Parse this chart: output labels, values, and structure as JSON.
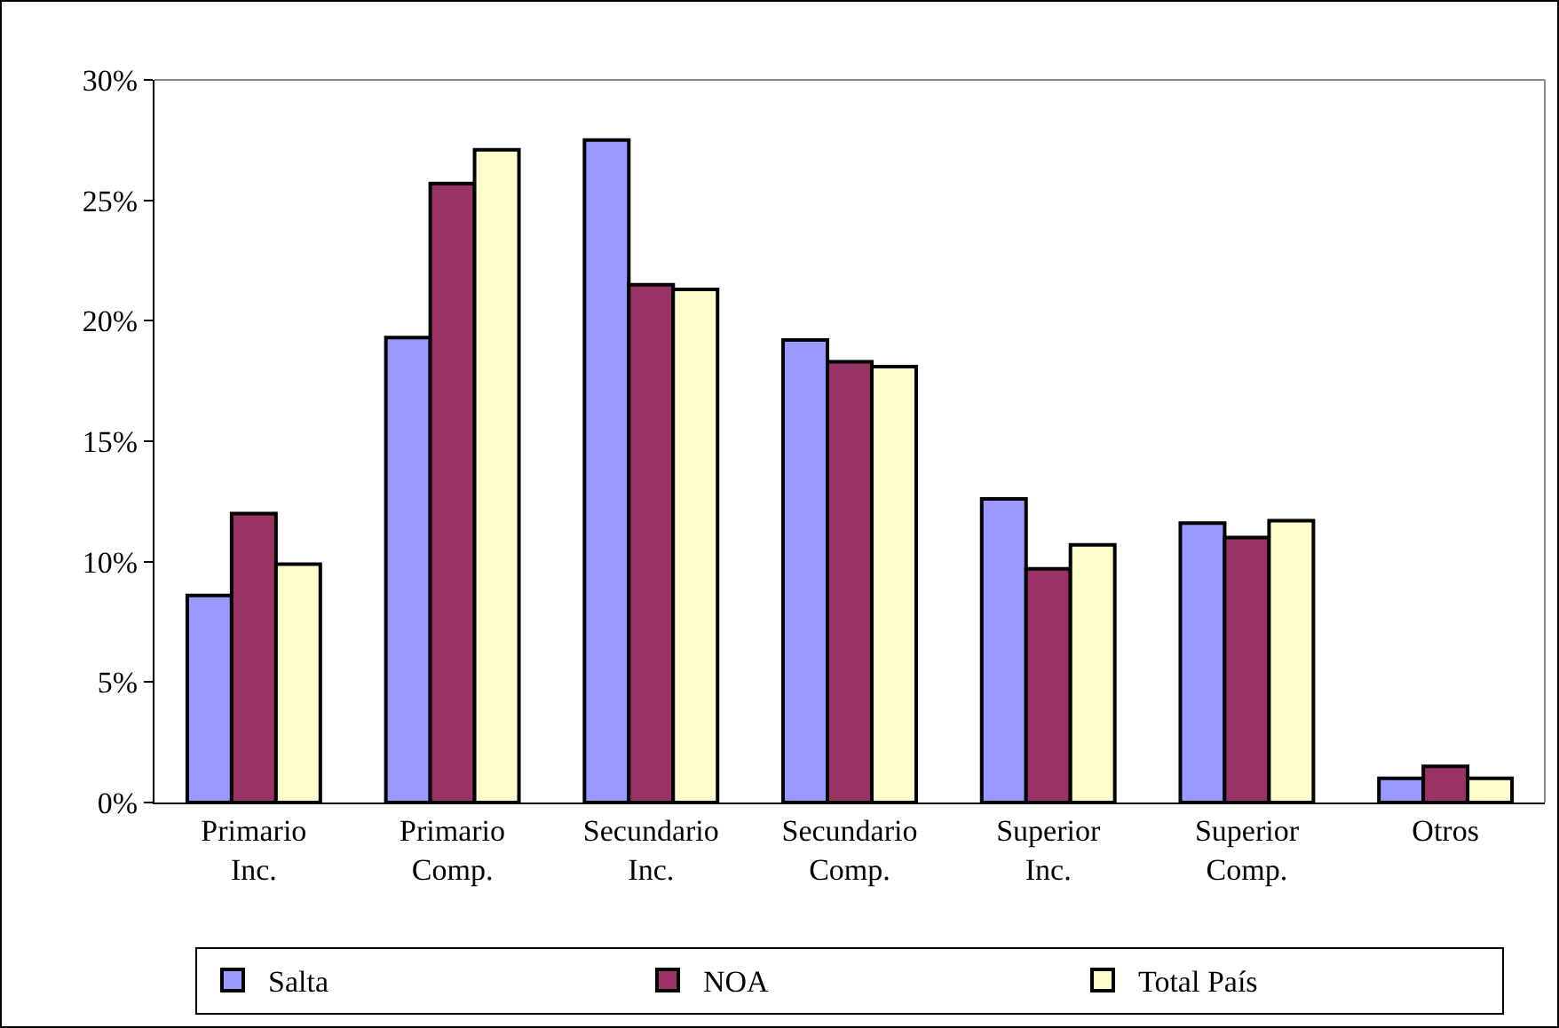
{
  "chart_data": {
    "type": "bar",
    "categories": [
      "Primario Inc.",
      "Primario Comp.",
      "Secundario Inc.",
      "Secundario Comp.",
      "Superior Inc.",
      "Superior Comp.",
      "Otros"
    ],
    "series": [
      {
        "name": "Salta",
        "color": "#9999ff",
        "values": [
          8.6,
          19.3,
          27.5,
          19.2,
          12.6,
          11.6,
          1.0
        ]
      },
      {
        "name": "NOA",
        "color": "#993366",
        "values": [
          12.0,
          25.7,
          21.5,
          18.3,
          9.7,
          11.0,
          1.5
        ]
      },
      {
        "name": "Total País",
        "color": "#ffffcc",
        "values": [
          9.9,
          27.1,
          21.3,
          18.1,
          10.7,
          11.7,
          1.0
        ]
      }
    ],
    "ylim": [
      0,
      30
    ],
    "yticks": [
      {
        "value": 0,
        "label": "0%"
      },
      {
        "value": 5,
        "label": "5%"
      },
      {
        "value": 10,
        "label": "10%"
      },
      {
        "value": 15,
        "label": "15%"
      },
      {
        "value": 20,
        "label": "20%"
      },
      {
        "value": 25,
        "label": "25%"
      },
      {
        "value": 30,
        "label": "30%"
      }
    ],
    "grid": false,
    "legend": "bottom"
  }
}
